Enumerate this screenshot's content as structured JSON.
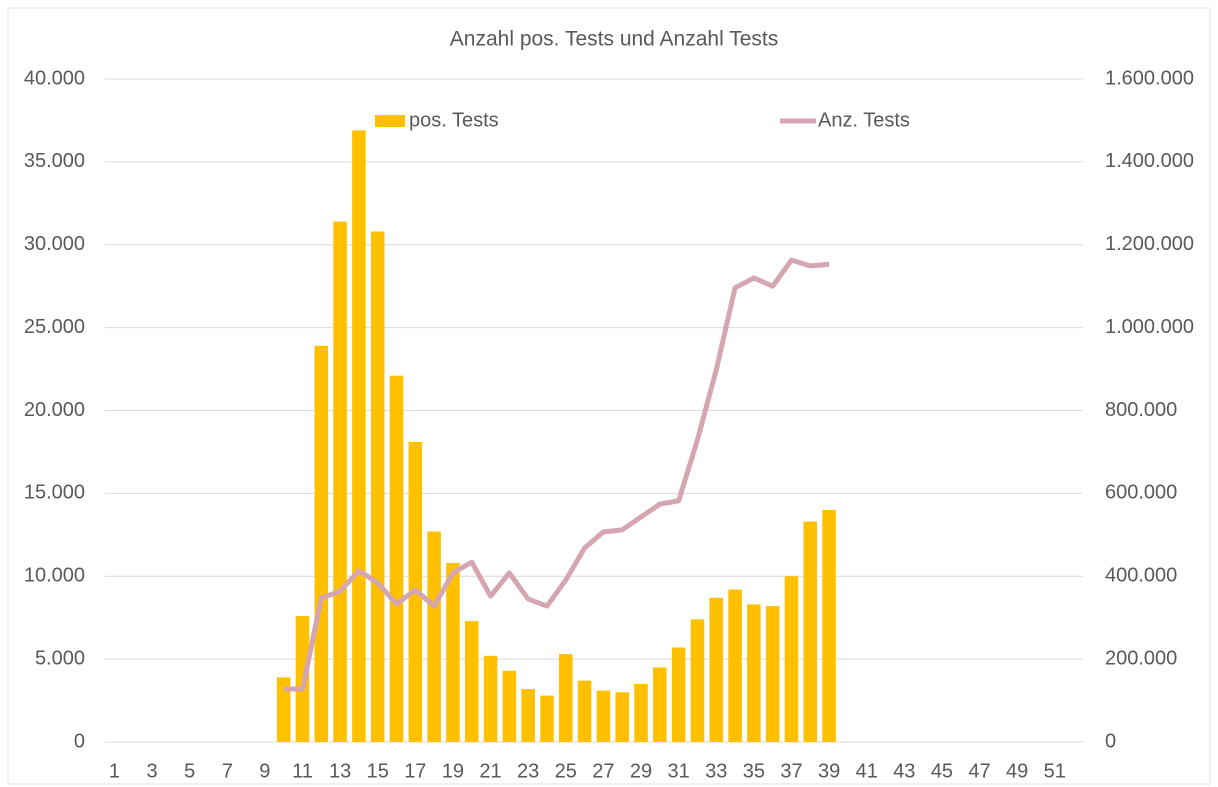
{
  "chart_data": {
    "type": "bar",
    "title": "Anzahl pos. Tests und Anzahl Tests",
    "categories": [
      "1",
      null,
      "3",
      null,
      "5",
      null,
      "7",
      null,
      "9",
      null,
      "11",
      null,
      "13",
      null,
      "15",
      null,
      "17",
      null,
      "19",
      null,
      "21",
      null,
      "23",
      null,
      "25",
      null,
      "27",
      null,
      "29",
      null,
      "31",
      null,
      "33",
      null,
      "35",
      null,
      "37",
      null,
      "39",
      null,
      "41",
      null,
      "43",
      null,
      "45",
      null,
      "47",
      null,
      "49",
      null,
      "51",
      null
    ],
    "series": [
      {
        "name": "pos. Tests",
        "type": "bar",
        "color": "#ffc000",
        "values": [
          null,
          null,
          null,
          null,
          null,
          null,
          null,
          null,
          null,
          3900,
          7600,
          23900,
          31400,
          36900,
          30800,
          22100,
          18100,
          12700,
          10800,
          7300,
          5200,
          4300,
          3200,
          2800,
          5300,
          3700,
          3100,
          3000,
          3500,
          4500,
          5700,
          7400,
          8700,
          9200,
          8300,
          8200,
          10000,
          13300,
          14000,
          null,
          null,
          null,
          null,
          null,
          null,
          null,
          null,
          null,
          null,
          null,
          null,
          null
        ]
      },
      {
        "name": "Anz. Tests",
        "type": "line",
        "axis": "y2",
        "color": "#d5a6b1",
        "values": [
          null,
          null,
          null,
          null,
          null,
          null,
          null,
          null,
          null,
          128000,
          128000,
          347000,
          364000,
          413000,
          384000,
          333000,
          367000,
          328000,
          408000,
          434000,
          352000,
          408000,
          345000,
          328000,
          391000,
          468000,
          507000,
          512000,
          543000,
          574000,
          582000,
          729000,
          898000,
          1096000,
          1120000,
          1100000,
          1163000,
          1149000,
          1153000,
          null,
          null,
          null,
          null,
          null,
          null,
          null,
          null,
          null,
          null,
          null,
          null,
          null
        ]
      }
    ],
    "ylim": [
      0,
      40000
    ],
    "yticks": [
      0,
      {
        "value": 5000,
        "label": "5.000"
      },
      {
        "value": 10000,
        "label": "10.000"
      },
      {
        "value": 15000,
        "label": "15.000"
      },
      {
        "value": 20000,
        "label": "20.000"
      },
      {
        "value": 25000,
        "label": "25.000"
      },
      {
        "value": 30000,
        "label": "30.000"
      },
      {
        "value": 35000,
        "label": "35.000"
      },
      {
        "value": 40000,
        "label": "40.000"
      }
    ],
    "y2lim": [
      0,
      1600000
    ],
    "y2ticks": [
      0,
      {
        "value": 200000,
        "label": "200.000"
      },
      {
        "value": 400000,
        "label": "400.000"
      },
      {
        "value": 600000,
        "label": "600.000"
      },
      {
        "value": 800000,
        "label": "800.000"
      },
      {
        "value": 1000000,
        "label": "1.000.000"
      },
      {
        "value": 1200000,
        "label": "1.200.000"
      },
      {
        "value": 1400000,
        "label": "1.400.000"
      },
      {
        "value": 1600000,
        "label": "1.600.000"
      }
    ],
    "grid": true,
    "legend": "top"
  }
}
